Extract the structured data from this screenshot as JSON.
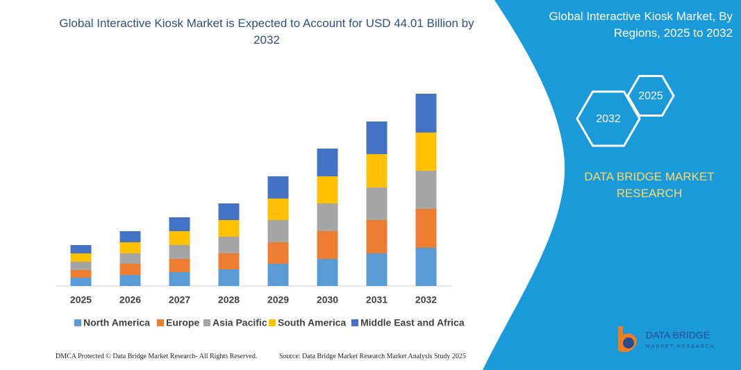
{
  "chart_data": {
    "type": "bar",
    "stacked": true,
    "title": "Global Interactive Kiosk Market is Expected to Account for USD 44.01 Billion by 2032",
    "categories": [
      "2025",
      "2026",
      "2027",
      "2028",
      "2029",
      "2030",
      "2031",
      "2032"
    ],
    "series": [
      {
        "name": "North America",
        "color": "#5b9bd5",
        "values": [
          12,
          16,
          20,
          24,
          32,
          39,
          47,
          55
        ]
      },
      {
        "name": "Europe",
        "color": "#ed7d31",
        "values": [
          11,
          16,
          19,
          23,
          31,
          40,
          48,
          56
        ]
      },
      {
        "name": "Asia Pacific",
        "color": "#a5a5a5",
        "values": [
          12,
          15,
          20,
          24,
          32,
          40,
          47,
          55
        ]
      },
      {
        "name": "South America",
        "color": "#ffc000",
        "values": [
          12,
          16,
          20,
          24,
          31,
          39,
          48,
          55
        ]
      },
      {
        "name": "Middle East and Africa",
        "color": "#4472c4",
        "values": [
          12,
          16,
          20,
          24,
          32,
          40,
          47,
          56
        ]
      }
    ],
    "ylim": [
      0,
      300
    ],
    "legend": "bottom"
  },
  "panel": {
    "title": "Global Interactive Kiosk Market, By Regions, 2025 to 2032",
    "hexagons": [
      "2032",
      "2025"
    ],
    "brand": "DATA BRIDGE MARKET RESEARCH",
    "logo": {
      "name": "DATA BRIDGE",
      "tagline": "MARKET RESEARCH"
    }
  },
  "footer": {
    "left": "DMCA Protected © Data Bridge Market Research-  All Rights Reserved.",
    "right": "Source: Data Bridge Market Research  Market Analysis Study 2025"
  }
}
